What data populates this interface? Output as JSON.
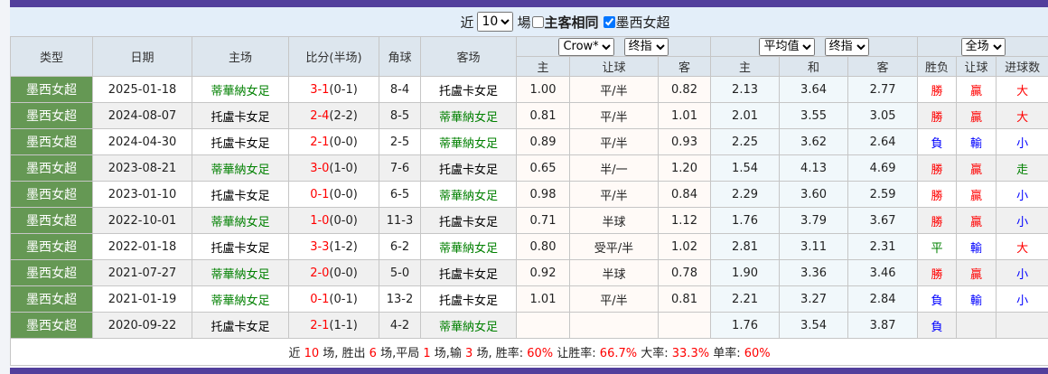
{
  "controls": {
    "prefix": "近",
    "count": "10",
    "suffix": "場",
    "same_home_away": {
      "label": "主客相同",
      "checked": false
    },
    "league_filter": {
      "label": "墨西女超",
      "checked": true
    }
  },
  "headers": {
    "type": "类型",
    "date": "日期",
    "home": "主场",
    "score": "比分(半场)",
    "corners": "角球",
    "away": "客场",
    "odds1_company": "Crow*",
    "odds1_kind": "终指",
    "odds2_company": "平均值",
    "odds2_kind": "终指",
    "result_scope": "全场",
    "sub": [
      "主",
      "让球",
      "客",
      "主",
      "和",
      "客",
      "胜负",
      "让球",
      "进球数"
    ]
  },
  "colors": {
    "win": "#ff0000",
    "lose": "#0000ff",
    "draw": "#008000",
    "highlight_team": "#008000",
    "league_bg": "#659854",
    "bar": "#523f9c"
  },
  "rows": [
    {
      "type": "墨西女超",
      "date": "2025-01-18",
      "home": "蒂華納女足",
      "ft": "3-1",
      "ht": "(0-1)",
      "corners": "8-4",
      "away": "托盧卡女足",
      "hl": "home",
      "o1": [
        "1.00",
        "平/半",
        "0.82"
      ],
      "o2": [
        "2.13",
        "3.64",
        "2.77"
      ],
      "res": "勝",
      "ah": "贏",
      "ou": "大"
    },
    {
      "type": "墨西女超",
      "date": "2024-08-07",
      "home": "托盧卡女足",
      "ft": "2-4",
      "ht": "(2-2)",
      "corners": "8-5",
      "away": "蒂華納女足",
      "hl": "away",
      "o1": [
        "0.81",
        "平/半",
        "1.01"
      ],
      "o2": [
        "2.01",
        "3.55",
        "3.05"
      ],
      "res": "勝",
      "ah": "贏",
      "ou": "大"
    },
    {
      "type": "墨西女超",
      "date": "2024-04-30",
      "home": "托盧卡女足",
      "ft": "2-1",
      "ht": "(0-0)",
      "corners": "2-5",
      "away": "蒂華納女足",
      "hl": "away",
      "o1": [
        "0.89",
        "平/半",
        "0.93"
      ],
      "o2": [
        "2.25",
        "3.62",
        "2.64"
      ],
      "res": "負",
      "ah": "輸",
      "ou": "小"
    },
    {
      "type": "墨西女超",
      "date": "2023-08-21",
      "home": "蒂華納女足",
      "ft": "3-0",
      "ht": "(1-0)",
      "corners": "7-6",
      "away": "托盧卡女足",
      "hl": "home",
      "o1": [
        "0.65",
        "半/一",
        "1.20"
      ],
      "o2": [
        "1.54",
        "4.13",
        "4.69"
      ],
      "res": "勝",
      "ah": "贏",
      "ou": "走"
    },
    {
      "type": "墨西女超",
      "date": "2023-01-10",
      "home": "托盧卡女足",
      "ft": "0-1",
      "ht": "(0-0)",
      "corners": "6-5",
      "away": "蒂華納女足",
      "hl": "away",
      "o1": [
        "0.98",
        "平/半",
        "0.84"
      ],
      "o2": [
        "2.29",
        "3.60",
        "2.59"
      ],
      "res": "勝",
      "ah": "贏",
      "ou": "小"
    },
    {
      "type": "墨西女超",
      "date": "2022-10-01",
      "home": "蒂華納女足",
      "ft": "1-0",
      "ht": "(0-0)",
      "corners": "11-3",
      "away": "托盧卡女足",
      "hl": "home",
      "o1": [
        "0.71",
        "半球",
        "1.12"
      ],
      "o2": [
        "1.76",
        "3.79",
        "3.67"
      ],
      "res": "勝",
      "ah": "贏",
      "ou": "小"
    },
    {
      "type": "墨西女超",
      "date": "2022-01-18",
      "home": "托盧卡女足",
      "ft": "3-3",
      "ht": "(1-2)",
      "corners": "6-2",
      "away": "蒂華納女足",
      "hl": "away",
      "o1": [
        "0.80",
        "受平/半",
        "1.02"
      ],
      "o2": [
        "2.81",
        "3.11",
        "2.31"
      ],
      "res": "平",
      "ah": "輸",
      "ou": "大"
    },
    {
      "type": "墨西女超",
      "date": "2021-07-27",
      "home": "蒂華納女足",
      "ft": "2-0",
      "ht": "(0-0)",
      "corners": "5-0",
      "away": "托盧卡女足",
      "hl": "home",
      "o1": [
        "0.92",
        "半球",
        "0.78"
      ],
      "o2": [
        "1.90",
        "3.36",
        "3.46"
      ],
      "res": "勝",
      "ah": "贏",
      "ou": "小"
    },
    {
      "type": "墨西女超",
      "date": "2021-01-19",
      "home": "蒂華納女足",
      "ft": "0-1",
      "ht": "(0-1)",
      "corners": "13-2",
      "away": "托盧卡女足",
      "hl": "home",
      "o1": [
        "1.01",
        "平/半",
        "0.81"
      ],
      "o2": [
        "2.21",
        "3.27",
        "2.84"
      ],
      "res": "負",
      "ah": "輸",
      "ou": "小"
    },
    {
      "type": "墨西女超",
      "date": "2020-09-22",
      "home": "托盧卡女足",
      "ft": "2-1",
      "ht": "(1-1)",
      "corners": "4-2",
      "away": "蒂華納女足",
      "hl": "away",
      "o1": [
        "",
        "",
        ""
      ],
      "o2": [
        "1.76",
        "3.54",
        "3.87"
      ],
      "res": "負",
      "ah": "",
      "ou": ""
    }
  ],
  "summary": [
    {
      "t": "近 "
    },
    {
      "t": "10",
      "r": 1
    },
    {
      "t": " 场, 胜出 "
    },
    {
      "t": "6",
      "r": 1
    },
    {
      "t": " 场,平局 "
    },
    {
      "t": "1",
      "r": 1
    },
    {
      "t": " 场,输 "
    },
    {
      "t": "3",
      "r": 1
    },
    {
      "t": " 场, 胜率: "
    },
    {
      "t": "60%",
      "r": 1
    },
    {
      "t": " 让胜率: "
    },
    {
      "t": "66.7%",
      "r": 1
    },
    {
      "t": " 大率: "
    },
    {
      "t": "33.3%",
      "r": 1
    },
    {
      "t": " 单率: "
    },
    {
      "t": "60%",
      "r": 1
    }
  ]
}
